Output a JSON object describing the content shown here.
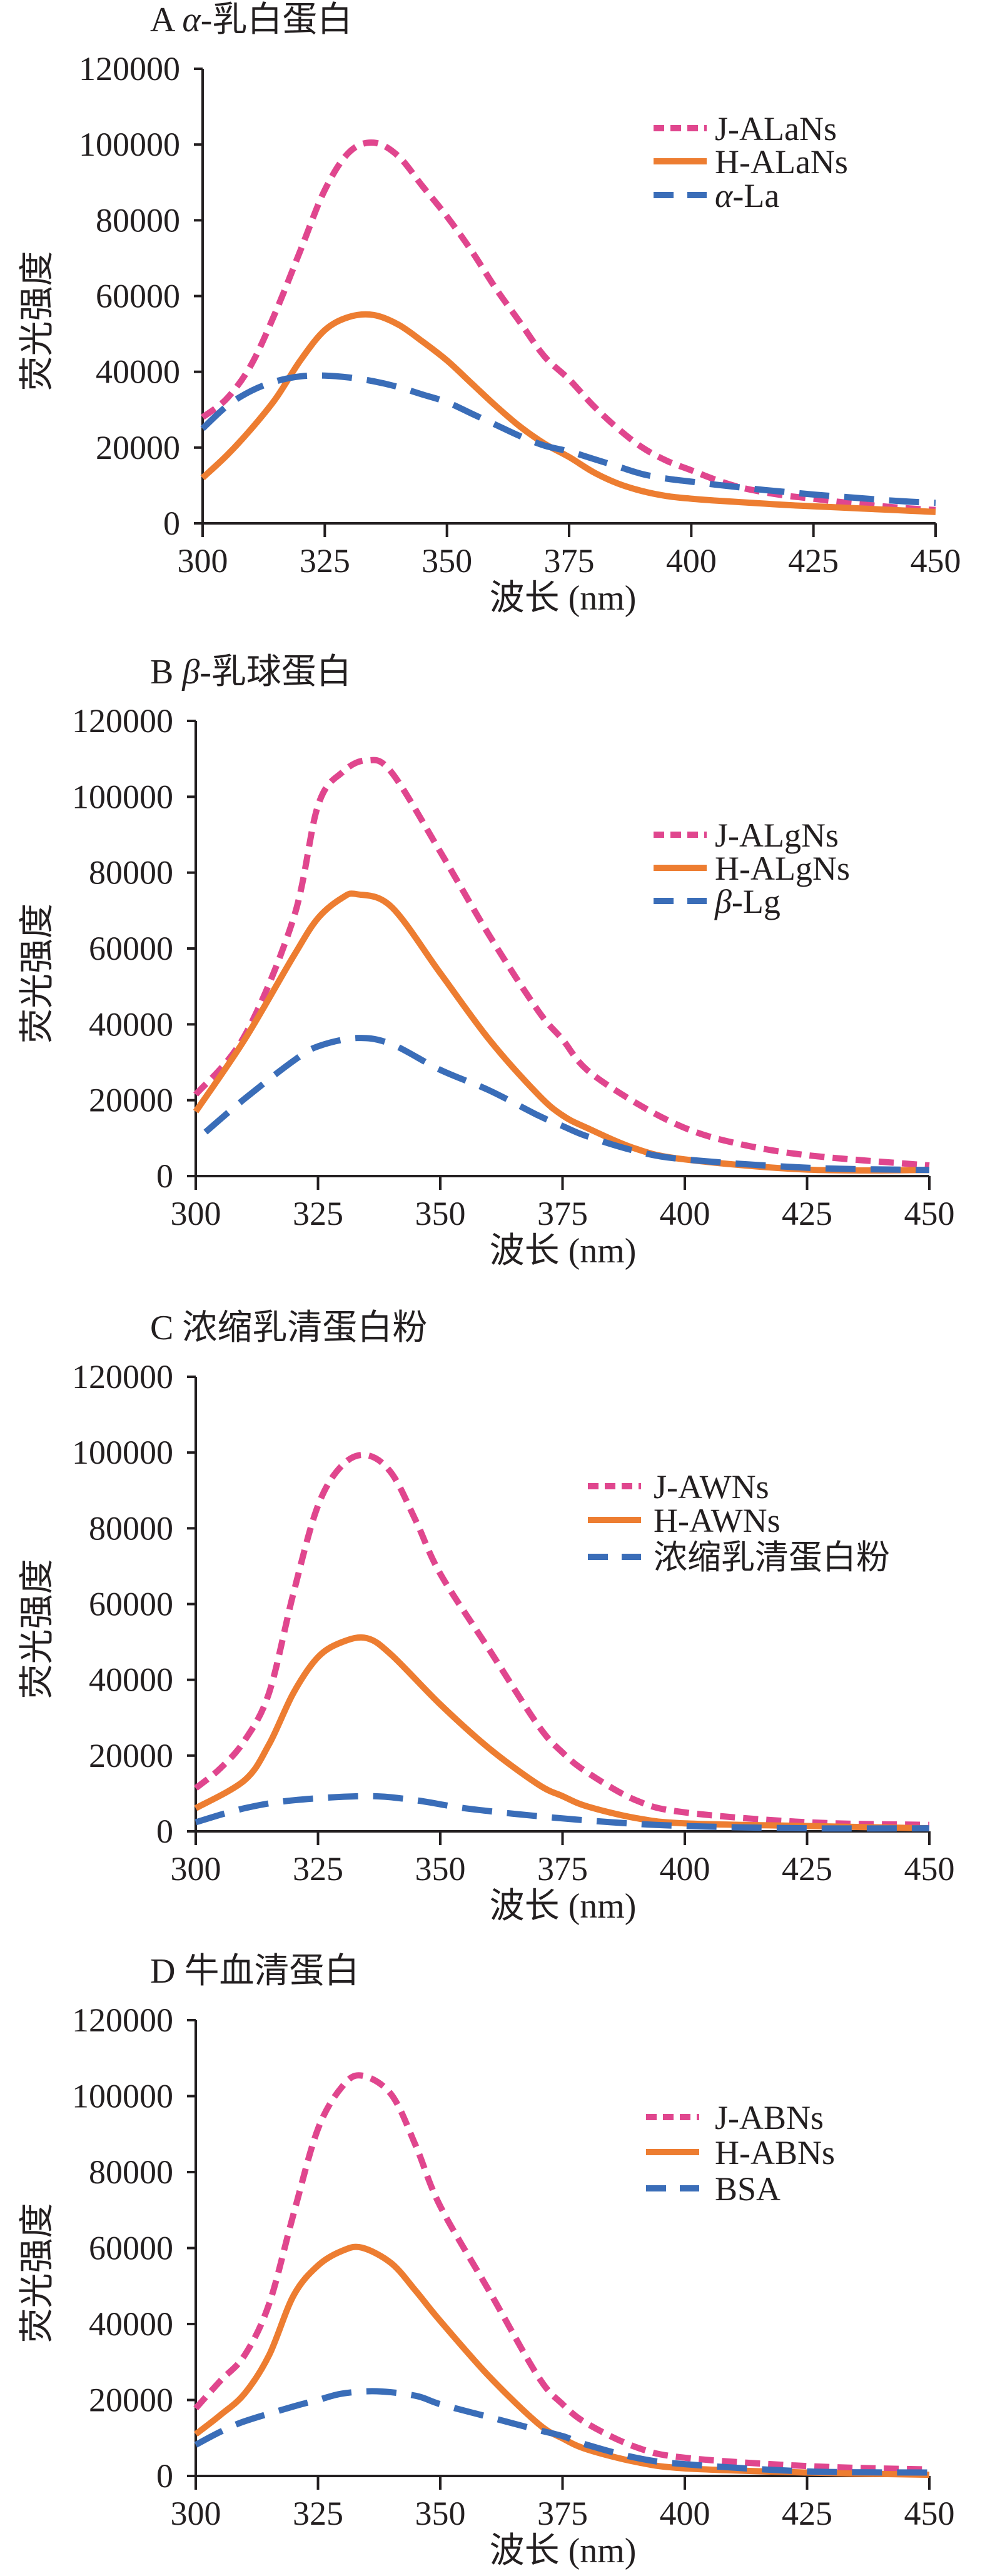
{
  "colors": {
    "J": "#E0468E",
    "H": "#ED7D31",
    "native": "#3A6DB8",
    "axis": "#231f20"
  },
  "chart_data": [
    {
      "type": "line",
      "panel": "A",
      "title_letter": "A",
      "title_greek": "α",
      "title_rest": "-乳白蛋白",
      "xlabel": "波长 (nm)",
      "ylabel": "荧光强度",
      "xlim": [
        300,
        450
      ],
      "ylim": [
        0,
        120000
      ],
      "xticks": [
        "300",
        "325",
        "350",
        "375",
        "400",
        "425",
        "450"
      ],
      "yticks": [
        "0",
        "20000",
        "40000",
        "60000",
        "80000",
        "100000",
        "120000"
      ],
      "grid": false,
      "legend_position": "top-right",
      "series": [
        {
          "name": "J-ALaNs",
          "style": "short-dash",
          "color_key": "J",
          "x": [
            300,
            305,
            310,
            315,
            320,
            325,
            330,
            335,
            340,
            345,
            350,
            355,
            360,
            365,
            370,
            375,
            380,
            385,
            390,
            395,
            400,
            405,
            410,
            415,
            420,
            425,
            430,
            435,
            440,
            445,
            450
          ],
          "y": [
            28000,
            33000,
            42000,
            56000,
            72000,
            88000,
            98000,
            100500,
            97000,
            89000,
            81000,
            72000,
            62000,
            53000,
            44000,
            38000,
            31000,
            25000,
            20000,
            16500,
            14000,
            11500,
            9500,
            8200,
            7200,
            6500,
            5700,
            5000,
            4400,
            3900,
            3500
          ]
        },
        {
          "name": "H-ALaNs",
          "style": "solid",
          "color_key": "H",
          "x": [
            300,
            305,
            310,
            315,
            320,
            325,
            330,
            335,
            340,
            345,
            350,
            355,
            360,
            365,
            370,
            375,
            380,
            385,
            390,
            395,
            400,
            405,
            410,
            415,
            420,
            425,
            430,
            435,
            440,
            445,
            450
          ],
          "y": [
            12000,
            18000,
            25000,
            33000,
            43000,
            51000,
            54500,
            55000,
            52500,
            48000,
            43000,
            37000,
            31000,
            25500,
            21000,
            17500,
            13500,
            10500,
            8500,
            7200,
            6500,
            6000,
            5600,
            5200,
            4800,
            4500,
            4200,
            3900,
            3600,
            3300,
            3000
          ]
        },
        {
          "legend_greek": "α",
          "name": "-La",
          "style": "long-dash",
          "color_key": "native",
          "x": [
            300,
            305,
            310,
            315,
            320,
            325,
            330,
            335,
            340,
            345,
            350,
            355,
            360,
            365,
            370,
            375,
            380,
            385,
            390,
            395,
            400,
            405,
            410,
            415,
            420,
            425,
            430,
            435,
            440,
            445,
            450
          ],
          "y": [
            25000,
            31000,
            35000,
            37500,
            38800,
            39000,
            38500,
            37500,
            36000,
            34000,
            32000,
            29000,
            26000,
            23000,
            20500,
            19000,
            17000,
            15000,
            13000,
            11800,
            11000,
            10200,
            9500,
            8800,
            8200,
            7600,
            7100,
            6600,
            6100,
            5700,
            5400
          ]
        }
      ]
    },
    {
      "type": "line",
      "panel": "B",
      "title_letter": "B",
      "title_greek": "β",
      "title_rest": "-乳球蛋白",
      "xlabel": "波长 (nm)",
      "ylabel": "荧光强度",
      "xlim": [
        300,
        450
      ],
      "ylim": [
        0,
        120000
      ],
      "xticks": [
        "300",
        "325",
        "350",
        "375",
        "400",
        "425",
        "450"
      ],
      "yticks": [
        "0",
        "20000",
        "40000",
        "60000",
        "80000",
        "100000",
        "120000"
      ],
      "grid": false,
      "legend_position": "top-right",
      "series": [
        {
          "name": "J-ALgNs",
          "style": "short-dash",
          "color_key": "J",
          "x": [
            300,
            310,
            320,
            325,
            330,
            335,
            340,
            350,
            360,
            370,
            375,
            380,
            390,
            400,
            410,
            425,
            450
          ],
          "y": [
            21500,
            37000,
            68000,
            97700,
            106500,
            109600,
            106500,
            85500,
            63500,
            43600,
            36000,
            28000,
            19300,
            12700,
            8800,
            5500,
            2800
          ]
        },
        {
          "name": "H-ALgNs",
          "style": "solid",
          "color_key": "H",
          "x": [
            300,
            310,
            320,
            325,
            330,
            333,
            340,
            350,
            360,
            370,
            375,
            380,
            390,
            400,
            425,
            450
          ],
          "y": [
            17000,
            36000,
            58000,
            68000,
            73400,
            74300,
            71000,
            53500,
            36000,
            21500,
            16000,
            12700,
            7200,
            4400,
            1700,
            1600
          ]
        },
        {
          "legend_greek": "β",
          "name": "-Lg",
          "style": "long-dash",
          "color_key": "native",
          "x": [
            302,
            310,
            320,
            325,
            333,
            340,
            350,
            360,
            370,
            375,
            380,
            390,
            400,
            425,
            450
          ],
          "y": [
            11600,
            20400,
            30400,
            34200,
            36400,
            34800,
            28000,
            22600,
            16000,
            13200,
            10500,
            6600,
            4400,
            2200,
            1600
          ]
        }
      ]
    },
    {
      "type": "line",
      "panel": "C",
      "title_letter": "C",
      "title_greek": "",
      "title_rest": "浓缩乳清蛋白粉",
      "xlabel": "波长 (nm)",
      "ylabel": "荧光强度",
      "xlim": [
        300,
        450
      ],
      "ylim": [
        0,
        120000
      ],
      "xticks": [
        "300",
        "325",
        "350",
        "375",
        "400",
        "425",
        "450"
      ],
      "yticks": [
        "0",
        "20000",
        "40000",
        "60000",
        "80000",
        "100000",
        "120000"
      ],
      "grid": false,
      "legend_position": "top-right",
      "series": [
        {
          "name": "J-AWNs",
          "style": "short-dash",
          "color_key": "J",
          "x": [
            300,
            305,
            310,
            315,
            320,
            325,
            330,
            335,
            340,
            345,
            350,
            360,
            370,
            375,
            380,
            390,
            400,
            425,
            450
          ],
          "y": [
            11400,
            16600,
            24000,
            36600,
            63000,
            86000,
            96700,
            99300,
            94600,
            82000,
            68000,
            48000,
            28000,
            20800,
            15600,
            8200,
            5000,
            2400,
            1700
          ]
        },
        {
          "name": "H-AWNs",
          "style": "solid",
          "color_key": "H",
          "x": [
            300,
            310,
            315,
            320,
            325,
            330,
            335,
            340,
            350,
            360,
            370,
            375,
            380,
            390,
            400,
            425,
            450
          ],
          "y": [
            6100,
            13500,
            23000,
            36600,
            46000,
            50000,
            51000,
            46600,
            33500,
            21900,
            12400,
            9300,
            6600,
            3500,
            2100,
            1400,
            800
          ]
        },
        {
          "name": "浓缩乳清蛋白粉",
          "style": "long-dash",
          "color_key": "native",
          "x": [
            300,
            310,
            320,
            335,
            345,
            355,
            370,
            385,
            400,
            425,
            450
          ],
          "y": [
            2400,
            6100,
            8200,
            9300,
            8200,
            6100,
            4000,
            2400,
            1400,
            800,
            800
          ]
        }
      ]
    },
    {
      "type": "line",
      "panel": "D",
      "title_letter": "D",
      "title_greek": "",
      "title_rest": "牛血清蛋白",
      "xlabel": "波长 (nm)",
      "ylabel": "荧光强度",
      "xlim": [
        300,
        450
      ],
      "ylim": [
        0,
        120000
      ],
      "xticks": [
        "300",
        "325",
        "350",
        "375",
        "400",
        "425",
        "450"
      ],
      "yticks": [
        "0",
        "20000",
        "40000",
        "60000",
        "80000",
        "100000",
        "120000"
      ],
      "grid": false,
      "legend_position": "top-right",
      "series": [
        {
          "name": "J-ABNs",
          "style": "short-dash",
          "color_key": "J",
          "x": [
            300,
            305,
            310,
            315,
            320,
            325,
            330,
            334,
            340,
            345,
            350,
            360,
            370,
            375,
            380,
            390,
            400,
            425,
            450
          ],
          "y": [
            17800,
            25000,
            31800,
            45300,
            69000,
            91400,
            102600,
            105400,
            100400,
            86900,
            71000,
            48700,
            26200,
            18900,
            13800,
            7600,
            4800,
            2600,
            1700
          ]
        },
        {
          "name": "H-ABNs",
          "style": "solid",
          "color_key": "H",
          "x": [
            300,
            305,
            310,
            315,
            320,
            325,
            330,
            334,
            340,
            345,
            350,
            360,
            370,
            375,
            380,
            390,
            400,
            425,
            450
          ],
          "y": [
            11000,
            16000,
            21700,
            31800,
            47500,
            55400,
            59300,
            60100,
            56000,
            48700,
            40800,
            26200,
            13800,
            9900,
            7000,
            3700,
            2000,
            900,
            300
          ]
        },
        {
          "name": "BSA",
          "style": "long-dash",
          "color_key": "native",
          "x": [
            300,
            305,
            310,
            320,
            325,
            330,
            337,
            345,
            350,
            360,
            370,
            375,
            380,
            390,
            400,
            425,
            450
          ],
          "y": [
            8200,
            11600,
            14400,
            18300,
            20000,
            21700,
            22300,
            21100,
            18900,
            15500,
            12100,
            10500,
            8200,
            4800,
            3100,
            1200,
            900
          ]
        }
      ]
    }
  ]
}
